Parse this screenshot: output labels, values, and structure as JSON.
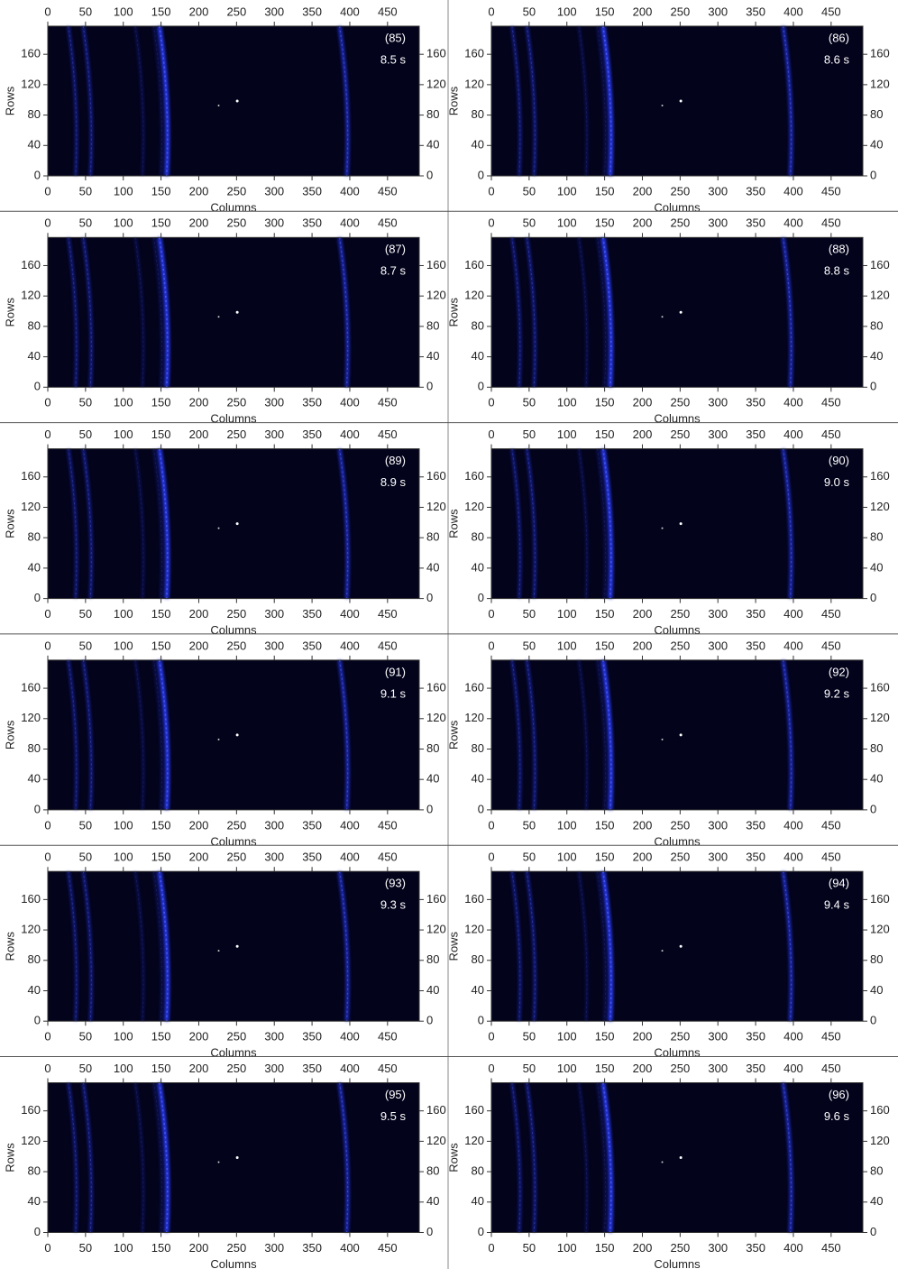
{
  "chart_data": [
    {
      "type": "image",
      "title": "(85)",
      "subtitle": "8.5 s",
      "x_label": "Columns",
      "y_label": "Rows",
      "xlim": [
        0,
        492
      ],
      "ylim": [
        0,
        197
      ],
      "xticks": [
        0,
        50,
        100,
        150,
        200,
        250,
        300,
        350,
        400,
        450
      ],
      "yticks": [
        0,
        40,
        80,
        120,
        160
      ]
    },
    {
      "type": "image",
      "title": "(86)",
      "subtitle": "8.6 s",
      "x_label": "Columns",
      "y_label": "Rows",
      "xlim": [
        0,
        492
      ],
      "ylim": [
        0,
        197
      ],
      "xticks": [
        0,
        50,
        100,
        150,
        200,
        250,
        300,
        350,
        400,
        450
      ],
      "yticks": [
        0,
        40,
        80,
        120,
        160
      ]
    },
    {
      "type": "image",
      "title": "(87)",
      "subtitle": "8.7 s",
      "x_label": "Columns",
      "y_label": "Rows",
      "xlim": [
        0,
        492
      ],
      "ylim": [
        0,
        197
      ],
      "xticks": [
        0,
        50,
        100,
        150,
        200,
        250,
        300,
        350,
        400,
        450
      ],
      "yticks": [
        0,
        40,
        80,
        120,
        160
      ]
    },
    {
      "type": "image",
      "title": "(88)",
      "subtitle": "8.8 s",
      "x_label": "Columns",
      "y_label": "Rows",
      "xlim": [
        0,
        492
      ],
      "ylim": [
        0,
        197
      ],
      "xticks": [
        0,
        50,
        100,
        150,
        200,
        250,
        300,
        350,
        400,
        450
      ],
      "yticks": [
        0,
        40,
        80,
        120,
        160
      ]
    },
    {
      "type": "image",
      "title": "(89)",
      "subtitle": "8.9 s",
      "x_label": "Columns",
      "y_label": "Rows",
      "xlim": [
        0,
        492
      ],
      "ylim": [
        0,
        197
      ],
      "xticks": [
        0,
        50,
        100,
        150,
        200,
        250,
        300,
        350,
        400,
        450
      ],
      "yticks": [
        0,
        40,
        80,
        120,
        160
      ]
    },
    {
      "type": "image",
      "title": "(90)",
      "subtitle": "9.0 s",
      "x_label": "Columns",
      "y_label": "Rows",
      "xlim": [
        0,
        492
      ],
      "ylim": [
        0,
        197
      ],
      "xticks": [
        0,
        50,
        100,
        150,
        200,
        250,
        300,
        350,
        400,
        450
      ],
      "yticks": [
        0,
        40,
        80,
        120,
        160
      ]
    },
    {
      "type": "image",
      "title": "(91)",
      "subtitle": "9.1 s",
      "x_label": "Columns",
      "y_label": "Rows",
      "xlim": [
        0,
        492
      ],
      "ylim": [
        0,
        197
      ],
      "xticks": [
        0,
        50,
        100,
        150,
        200,
        250,
        300,
        350,
        400,
        450
      ],
      "yticks": [
        0,
        40,
        80,
        120,
        160
      ]
    },
    {
      "type": "image",
      "title": "(92)",
      "subtitle": "9.2 s",
      "x_label": "Columns",
      "y_label": "Rows",
      "xlim": [
        0,
        492
      ],
      "ylim": [
        0,
        197
      ],
      "xticks": [
        0,
        50,
        100,
        150,
        200,
        250,
        300,
        350,
        400,
        450
      ],
      "yticks": [
        0,
        40,
        80,
        120,
        160
      ]
    },
    {
      "type": "image",
      "title": "(93)",
      "subtitle": "9.3 s",
      "x_label": "Columns",
      "y_label": "Rows",
      "xlim": [
        0,
        492
      ],
      "ylim": [
        0,
        197
      ],
      "xticks": [
        0,
        50,
        100,
        150,
        200,
        250,
        300,
        350,
        400,
        450
      ],
      "yticks": [
        0,
        40,
        80,
        120,
        160
      ]
    },
    {
      "type": "image",
      "title": "(94)",
      "subtitle": "9.4 s",
      "x_label": "Columns",
      "y_label": "Rows",
      "xlim": [
        0,
        492
      ],
      "ylim": [
        0,
        197
      ],
      "xticks": [
        0,
        50,
        100,
        150,
        200,
        250,
        300,
        350,
        400,
        450
      ],
      "yticks": [
        0,
        40,
        80,
        120,
        160
      ]
    },
    {
      "type": "image",
      "title": "(95)",
      "subtitle": "9.5 s",
      "x_label": "Columns",
      "y_label": "Rows",
      "xlim": [
        0,
        492
      ],
      "ylim": [
        0,
        197
      ],
      "xticks": [
        0,
        50,
        100,
        150,
        200,
        250,
        300,
        350,
        400,
        450
      ],
      "yticks": [
        0,
        40,
        80,
        120,
        160
      ]
    },
    {
      "type": "image",
      "title": "(96)",
      "subtitle": "9.6 s",
      "x_label": "Columns",
      "y_label": "Rows",
      "xlim": [
        0,
        492
      ],
      "ylim": [
        0,
        197
      ],
      "xticks": [
        0,
        50,
        100,
        150,
        200,
        250,
        300,
        350,
        400,
        450
      ],
      "yticks": [
        0,
        40,
        80,
        120,
        160
      ]
    }
  ]
}
